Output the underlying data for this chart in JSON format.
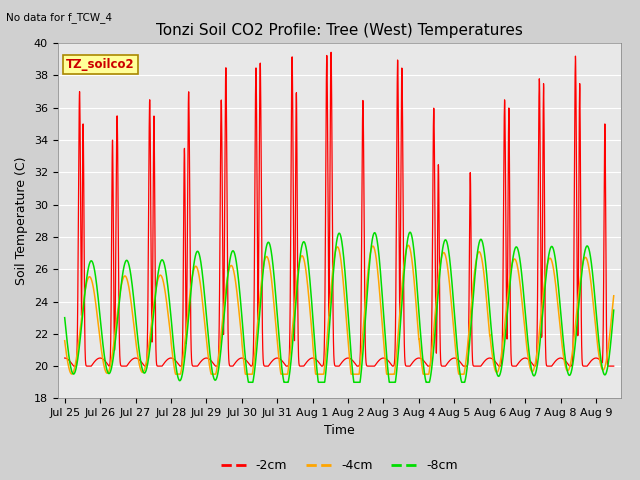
{
  "title": "Tonzi Soil CO2 Profile: Tree (West) Temperatures",
  "no_data_label": "No data for f_TCW_4",
  "xlabel": "Time",
  "ylabel": "Soil Temperature (C)",
  "ylim": [
    18,
    40
  ],
  "yticks": [
    18,
    20,
    22,
    24,
    26,
    28,
    30,
    32,
    34,
    36,
    38,
    40
  ],
  "fig_bg_color": "#d0d0d0",
  "plot_bg_color": "#e8e8e8",
  "legend_label_2cm": "-2cm",
  "legend_label_4cm": "-4cm",
  "legend_label_8cm": "-8cm",
  "color_2cm": "#ff0000",
  "color_4cm": "#ffa500",
  "color_8cm": "#00dd00",
  "tz_box_color": "#ffff99",
  "tz_box_text": "TZ_soilco2",
  "title_fontsize": 11,
  "axis_fontsize": 9,
  "legend_fontsize": 9,
  "tick_label_fontsize": 8,
  "xtick_labels": [
    "Jul 25",
    "Jul 26",
    "Jul 27",
    "Jul 28",
    "Jul 29",
    "Jul 30",
    "Jul 31",
    "Aug 1",
    "Aug 2",
    "Aug 3",
    "Aug 4",
    "Aug 5",
    "Aug 6",
    "Aug 7",
    "Aug 8",
    "Aug 9"
  ],
  "xtick_positions": [
    0,
    1,
    2,
    3,
    4,
    5,
    6,
    7,
    8,
    9,
    10,
    11,
    12,
    13,
    14,
    15
  ]
}
